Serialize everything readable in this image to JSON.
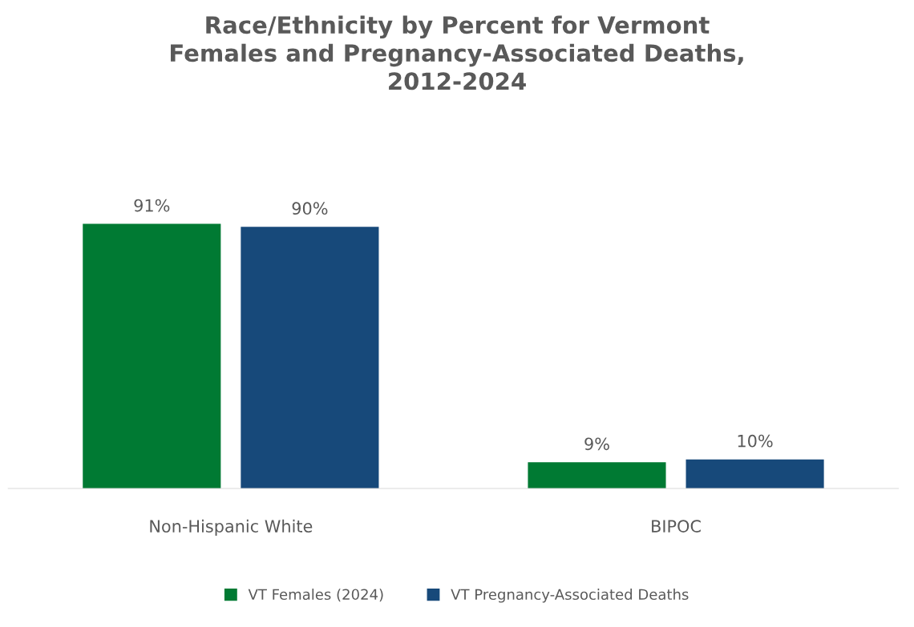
{
  "chart_data": {
    "type": "bar",
    "title": "Race/Ethnicity by Percent for Vermont\nFemales and Pregnancy-Associated Deaths,\n2012-2024",
    "categories": [
      "Non-Hispanic White",
      "BIPOC"
    ],
    "series": [
      {
        "name": "VT Females (2024)",
        "color": "#007a33",
        "values": [
          91,
          9
        ],
        "value_labels": [
          "91%",
          "9%"
        ]
      },
      {
        "name": "VT Pregnancy-Associated Deaths",
        "color": "#17497a",
        "values": [
          90,
          10
        ],
        "value_labels": [
          "90%",
          "10%"
        ]
      }
    ],
    "legend": "bottom",
    "grid": false
  }
}
